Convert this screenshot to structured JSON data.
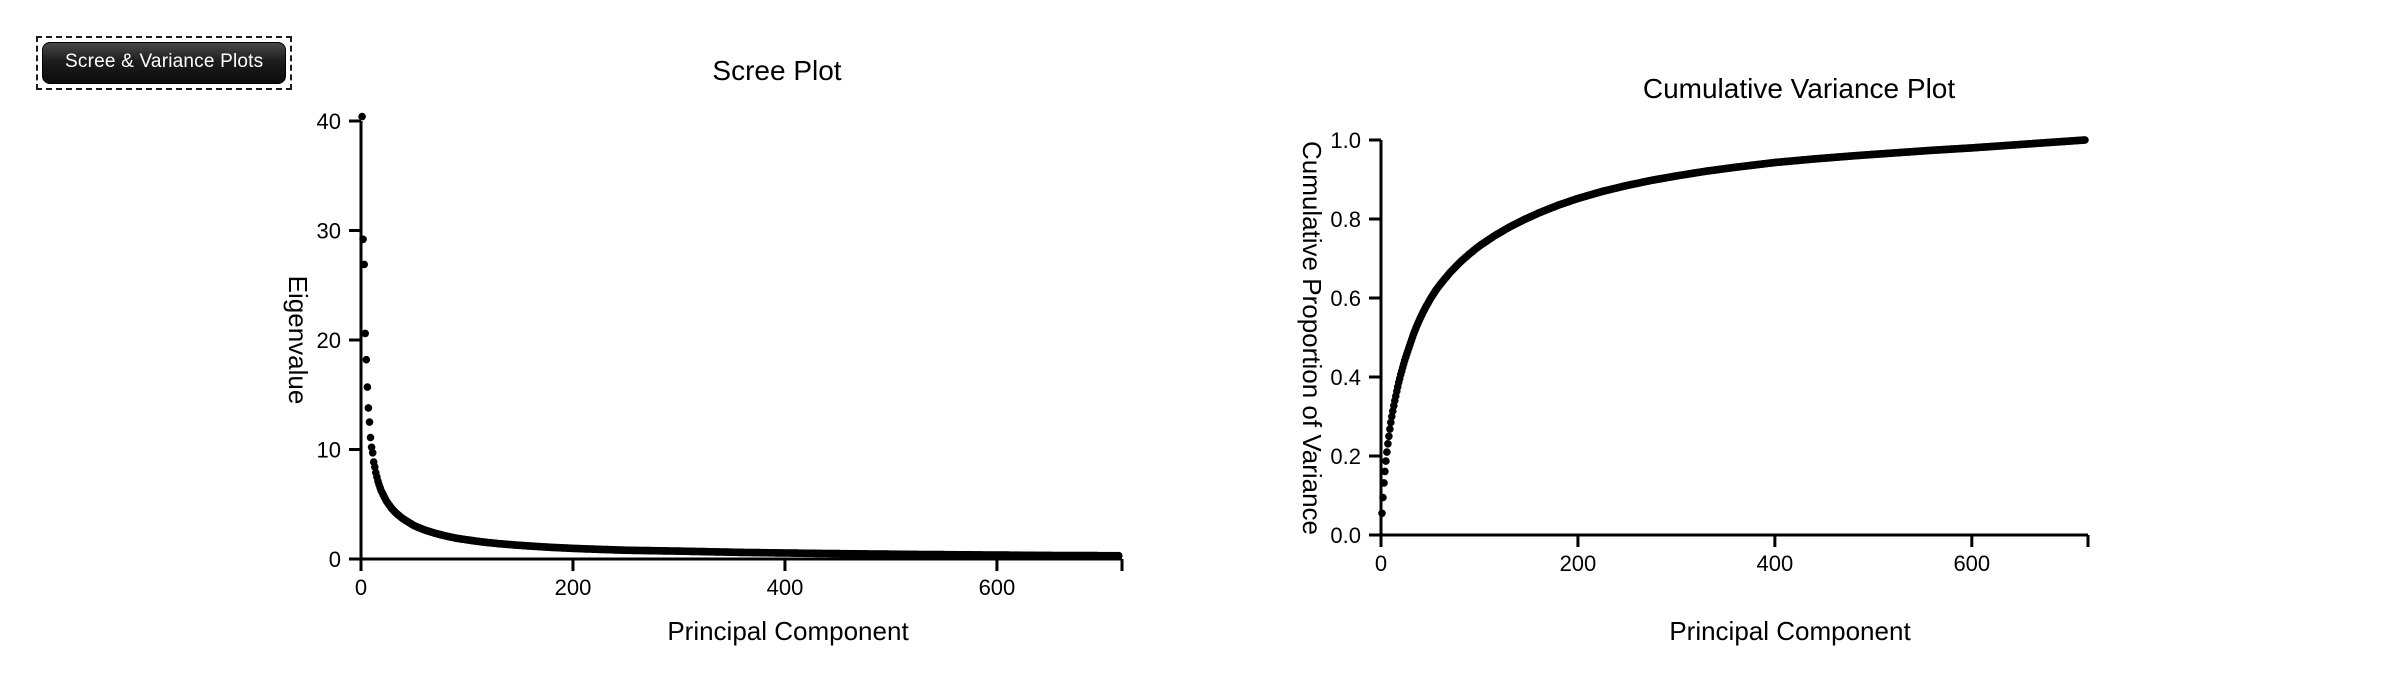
{
  "canvas": {
    "background": "#ffffff"
  },
  "button": {
    "label": "Scree & Variance Plots",
    "selected": true,
    "background": "#1d1d1d",
    "text_color": "#ffffff"
  },
  "chart_data": [
    {
      "type": "scatter",
      "title": "Scree Plot",
      "xlabel": "Principal Component",
      "ylabel": "Eigenvalue",
      "xlim": [
        0,
        718
      ],
      "ylim": [
        0,
        40
      ],
      "xtick_values": [
        0,
        200,
        400,
        600
      ],
      "xtick_labels": [
        "0",
        "200",
        "400",
        "600"
      ],
      "ytick_values": [
        0,
        10,
        20,
        30,
        40
      ],
      "ytick_labels": [
        "0",
        "10",
        "20",
        "30",
        "40"
      ],
      "axis_end_tick": 718,
      "grid": false,
      "legend": null,
      "marker_color": "#000000",
      "marker_diameter_px": 7.6,
      "points_sampled": [
        [
          1,
          40.4
        ],
        [
          2,
          29.2
        ],
        [
          3,
          26.9
        ],
        [
          4,
          20.6
        ],
        [
          5,
          18.2
        ],
        [
          6,
          15.7
        ],
        [
          7,
          13.8
        ],
        [
          8,
          12.5
        ],
        [
          9,
          11.1
        ],
        [
          10,
          10.2
        ],
        [
          11,
          9.7
        ],
        [
          12,
          8.85
        ],
        [
          13,
          8.4
        ],
        [
          14,
          7.9
        ],
        [
          15,
          7.5
        ],
        [
          16,
          7.1
        ],
        [
          17,
          6.8
        ],
        [
          18,
          6.5
        ],
        [
          19,
          6.25
        ],
        [
          20,
          6.05
        ],
        [
          22,
          5.65
        ],
        [
          24,
          5.3
        ],
        [
          26,
          5.0
        ],
        [
          28,
          4.75
        ],
        [
          30,
          4.5
        ],
        [
          33,
          4.2
        ],
        [
          36,
          3.95
        ],
        [
          40,
          3.65
        ],
        [
          45,
          3.35
        ],
        [
          50,
          3.05
        ],
        [
          55,
          2.85
        ],
        [
          60,
          2.65
        ],
        [
          70,
          2.35
        ],
        [
          80,
          2.1
        ],
        [
          90,
          1.9
        ],
        [
          100,
          1.75
        ],
        [
          115,
          1.55
        ],
        [
          130,
          1.4
        ],
        [
          145,
          1.28
        ],
        [
          160,
          1.18
        ],
        [
          180,
          1.06
        ],
        [
          200,
          0.97
        ],
        [
          225,
          0.88
        ],
        [
          250,
          0.8
        ],
        [
          275,
          0.76
        ],
        [
          300,
          0.72
        ],
        [
          330,
          0.66
        ],
        [
          360,
          0.6
        ],
        [
          400,
          0.55
        ],
        [
          440,
          0.5
        ],
        [
          480,
          0.46
        ],
        [
          520,
          0.42
        ],
        [
          560,
          0.39
        ],
        [
          600,
          0.36
        ],
        [
          640,
          0.33
        ],
        [
          680,
          0.31
        ],
        [
          715,
          0.3
        ]
      ]
    },
    {
      "type": "scatter",
      "title": "Cumulative Variance Plot",
      "xlabel": "Principal Component",
      "ylabel": "Cumulative Proportion of Variance",
      "xlim": [
        0,
        718
      ],
      "ylim": [
        0,
        1.0
      ],
      "xtick_values": [
        0,
        200,
        400,
        600
      ],
      "xtick_labels": [
        "0",
        "200",
        "400",
        "600"
      ],
      "ytick_values": [
        0,
        0.2,
        0.4,
        0.6,
        0.8,
        1.0
      ],
      "ytick_labels": [
        "0.0",
        "0.2",
        "0.4",
        "0.6",
        "0.8",
        "1.0"
      ],
      "axis_end_tick": 718,
      "grid": false,
      "legend": null,
      "marker_color": "#000000",
      "marker_diameter_px": 7.6,
      "points_sampled": [
        [
          1,
          0.055
        ],
        [
          2,
          0.095
        ],
        [
          3,
          0.132
        ],
        [
          4,
          0.161
        ],
        [
          5,
          0.187
        ],
        [
          6,
          0.21
        ],
        [
          7,
          0.231
        ],
        [
          8,
          0.25
        ],
        [
          9,
          0.268
        ],
        [
          10,
          0.285
        ],
        [
          11,
          0.3
        ],
        [
          12,
          0.314
        ],
        [
          13,
          0.327
        ],
        [
          14,
          0.34
        ],
        [
          15,
          0.352
        ],
        [
          16,
          0.364
        ],
        [
          17,
          0.375
        ],
        [
          18,
          0.386
        ],
        [
          19,
          0.396
        ],
        [
          20,
          0.406
        ],
        [
          22,
          0.424
        ],
        [
          24,
          0.441
        ],
        [
          26,
          0.457
        ],
        [
          28,
          0.472
        ],
        [
          30,
          0.486
        ],
        [
          33,
          0.508
        ],
        [
          36,
          0.527
        ],
        [
          40,
          0.55
        ],
        [
          45,
          0.575
        ],
        [
          50,
          0.597
        ],
        [
          55,
          0.617
        ],
        [
          60,
          0.634
        ],
        [
          70,
          0.664
        ],
        [
          80,
          0.69
        ],
        [
          90,
          0.712
        ],
        [
          100,
          0.732
        ],
        [
          115,
          0.757
        ],
        [
          130,
          0.779
        ],
        [
          145,
          0.798
        ],
        [
          160,
          0.815
        ],
        [
          180,
          0.835
        ],
        [
          200,
          0.852
        ],
        [
          225,
          0.87
        ],
        [
          250,
          0.885
        ],
        [
          275,
          0.898
        ],
        [
          300,
          0.909
        ],
        [
          330,
          0.921
        ],
        [
          360,
          0.931
        ],
        [
          400,
          0.943
        ],
        [
          440,
          0.952
        ],
        [
          480,
          0.96
        ],
        [
          520,
          0.967
        ],
        [
          560,
          0.974
        ],
        [
          600,
          0.98
        ],
        [
          640,
          0.987
        ],
        [
          680,
          0.994
        ],
        [
          715,
          1.0
        ]
      ]
    }
  ]
}
